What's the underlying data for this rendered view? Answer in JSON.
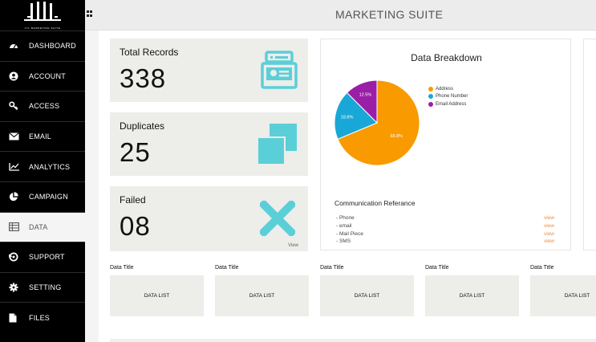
{
  "app": {
    "logo_text": "JYL MARKETING SUITE",
    "title": "MARKETING SUITE"
  },
  "sidebar": {
    "items": [
      {
        "label": "DASHBOARD",
        "icon": "dashboard-icon"
      },
      {
        "label": "ACCOUNT",
        "icon": "account-icon"
      },
      {
        "label": "ACCESS",
        "icon": "key-icon"
      },
      {
        "label": "EMAIL",
        "icon": "envelope-icon"
      },
      {
        "label": "ANALYTICS",
        "icon": "line-chart-icon"
      },
      {
        "label": "CAMPAIGN",
        "icon": "pie-chart-icon"
      },
      {
        "label": "DATA",
        "icon": "table-icon",
        "active": true
      },
      {
        "label": "SUPPORT",
        "icon": "support-icon"
      },
      {
        "label": "SETTING",
        "icon": "gear-icon"
      },
      {
        "label": "FILES",
        "icon": "file-icon"
      }
    ]
  },
  "stats": {
    "total": {
      "title": "Total Records",
      "value": "338",
      "icon": "card-file-icon"
    },
    "duplicates": {
      "title": "Duplicates",
      "value": "25",
      "icon": "duplicate-icon"
    },
    "failed": {
      "title": "Failed",
      "value": "08",
      "icon": "x-icon",
      "link": "View"
    }
  },
  "breakdown": {
    "title": "Data Breakdown",
    "communication_title": "Communication Referance",
    "communication": [
      {
        "label": "- Phone",
        "link": "view"
      },
      {
        "label": "- email",
        "link": "view"
      },
      {
        "label": "- Mail Piece",
        "link": "view"
      },
      {
        "label": "- SMS",
        "link": "view"
      }
    ]
  },
  "chart_data": {
    "type": "pie",
    "title": "Data Breakdown",
    "legend_position": "top-right",
    "slices": [
      {
        "name": "Address",
        "value": 68.8,
        "label": "68.8%",
        "color": "#f89a00"
      },
      {
        "name": "Phone Number",
        "value": 18.8,
        "label": "18.8%",
        "color": "#19a7d7"
      },
      {
        "name": "Email Address",
        "value": 12.5,
        "label": "12.5%",
        "color": "#9b1fa6"
      }
    ]
  },
  "data_cards": [
    {
      "title": "Data Title",
      "body": "DATA LIST"
    },
    {
      "title": "Data Title",
      "body": "DATA LIST"
    },
    {
      "title": "Data Title",
      "body": "DATA LIST"
    },
    {
      "title": "Data Title",
      "body": "DATA LIST"
    },
    {
      "title": "Data Title",
      "body": "DATA LIST"
    }
  ],
  "colors": {
    "accent_teal": "#5bcfd8",
    "link_orange": "#e5914e",
    "sidebar_bg": "#000000"
  }
}
